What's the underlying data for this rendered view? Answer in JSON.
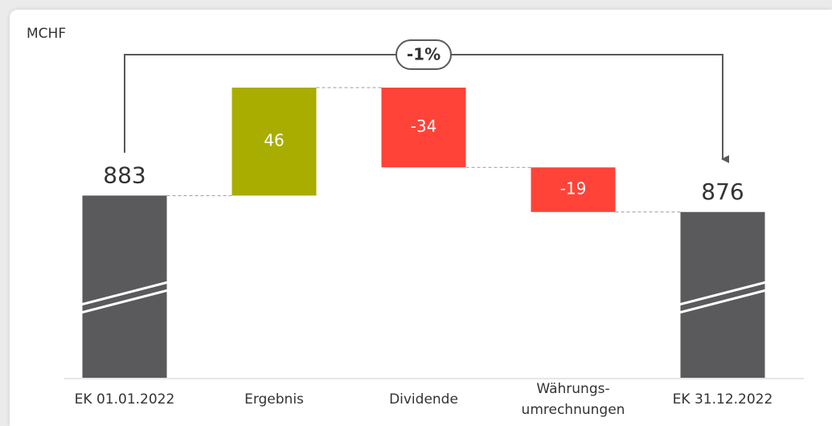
{
  "chart_data": {
    "type": "waterfall",
    "unit_label": "MCHF",
    "annotation": "-1%",
    "categories": [
      "EK 01.01.2022",
      "Ergebnis",
      "Dividende",
      "Währungs-\numrechnungen",
      "EK 31.12.2022"
    ],
    "values": [
      883,
      46,
      -34,
      -19,
      876
    ],
    "measure": [
      "total",
      "relative",
      "relative",
      "relative",
      "total"
    ],
    "colors": {
      "total": "#5a595b",
      "increase": "#a8ad00",
      "decrease": "#ff4338"
    },
    "broken_axis": true
  }
}
